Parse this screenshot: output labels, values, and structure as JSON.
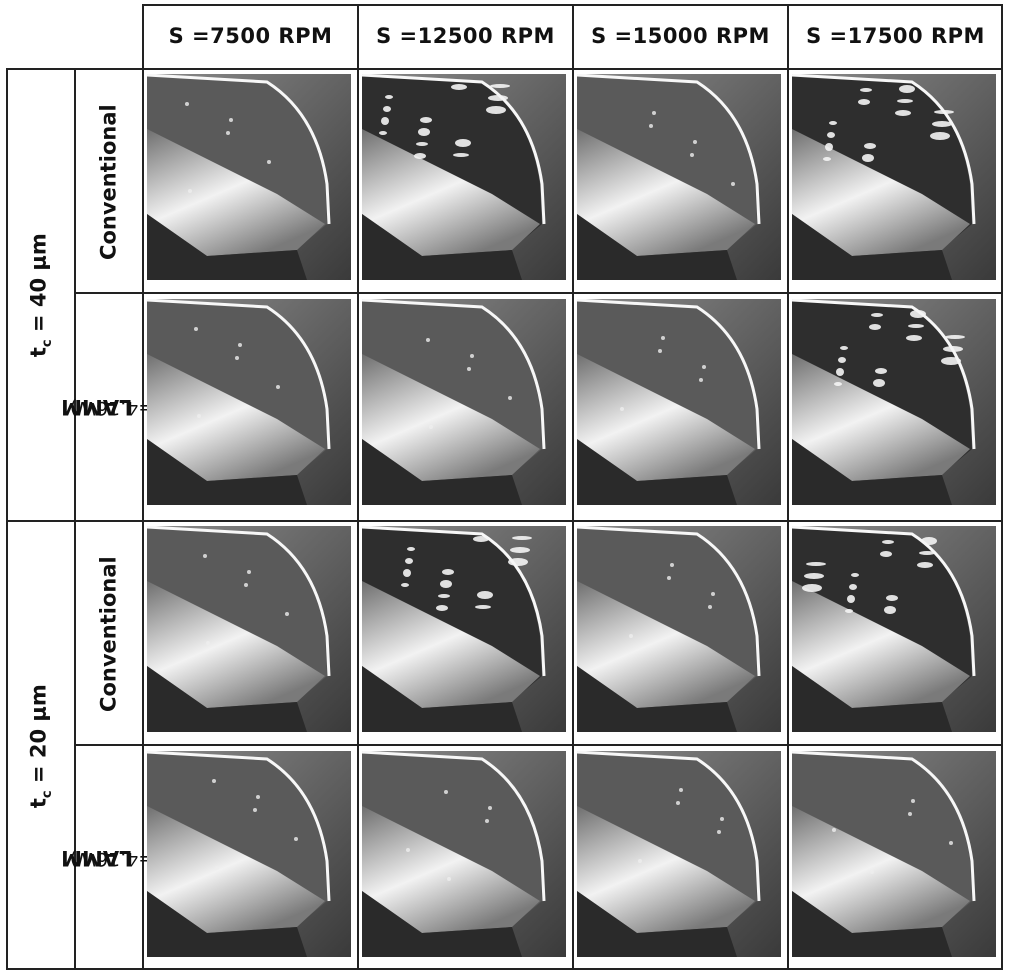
{
  "columns": [
    "S =7500 RPM",
    "S =12500 RPM",
    "S =15000 RPM",
    "S =17500 RPM"
  ],
  "groups": [
    {
      "label": "t",
      "sub": "c",
      "value": " = 40 μm"
    },
    {
      "label": "t",
      "sub": "c",
      "value": " = 20 μm"
    }
  ],
  "rows": [
    "Conventional",
    "LAMM",
    "Conventional",
    "LAMM"
  ],
  "lamm_power": "(P=4.16W)",
  "images": [
    [
      "cutter-tool-micrograph",
      "cutter-tool-micrograph",
      "cutter-tool-micrograph",
      "cutter-tool-micrograph"
    ],
    [
      "cutter-tool-micrograph",
      "cutter-tool-micrograph",
      "cutter-tool-micrograph",
      "cutter-tool-micrograph"
    ],
    [
      "cutter-tool-micrograph",
      "cutter-tool-micrograph",
      "cutter-tool-micrograph",
      "cutter-tool-micrograph"
    ],
    [
      "cutter-tool-micrograph",
      "cutter-tool-micrograph",
      "cutter-tool-micrograph",
      "cutter-tool-micrograph"
    ]
  ],
  "colors": {
    "border": "#222222",
    "background": "#ffffff",
    "photo_dark": "#3a3a3a",
    "photo_mid": "#8a8a8a",
    "photo_light": "#f2f2f2"
  }
}
